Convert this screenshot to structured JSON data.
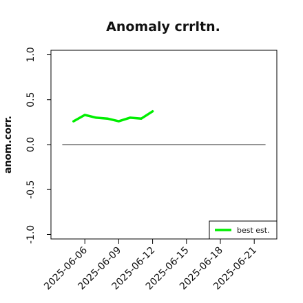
{
  "chart_data": {
    "type": "line",
    "title": "Anomaly crrltn.",
    "xlabel": "",
    "ylabel": "anom.corr.",
    "xlim": [
      "2025-06-03",
      "2025-06-23"
    ],
    "ylim": [
      -1.05,
      1.05
    ],
    "yticks": [
      -1.0,
      -0.5,
      0.0,
      0.5,
      1.0
    ],
    "ytick_labels": [
      "-1.0",
      "-0.5",
      "0.0",
      "0.5",
      "1.0"
    ],
    "xticks": [
      "2025-06-06",
      "2025-06-09",
      "2025-06-12",
      "2025-06-15",
      "2025-06-18",
      "2025-06-21"
    ],
    "highlight_tick": "2025-06-12",
    "highlight_color": "#228B22",
    "reference_line": {
      "y": 0.0,
      "x_start": "2025-06-04",
      "x_end": "2025-06-22",
      "color": "#555555"
    },
    "series": [
      {
        "name": "best est.",
        "color": "#00ee00",
        "x": [
          "2025-06-05",
          "2025-06-06",
          "2025-06-07",
          "2025-06-08",
          "2025-06-09",
          "2025-06-10",
          "2025-06-11",
          "2025-06-12"
        ],
        "values": [
          0.26,
          0.33,
          0.3,
          0.29,
          0.26,
          0.3,
          0.29,
          0.37
        ]
      }
    ],
    "legend": {
      "position": "bottom-right"
    },
    "grid": false
  }
}
